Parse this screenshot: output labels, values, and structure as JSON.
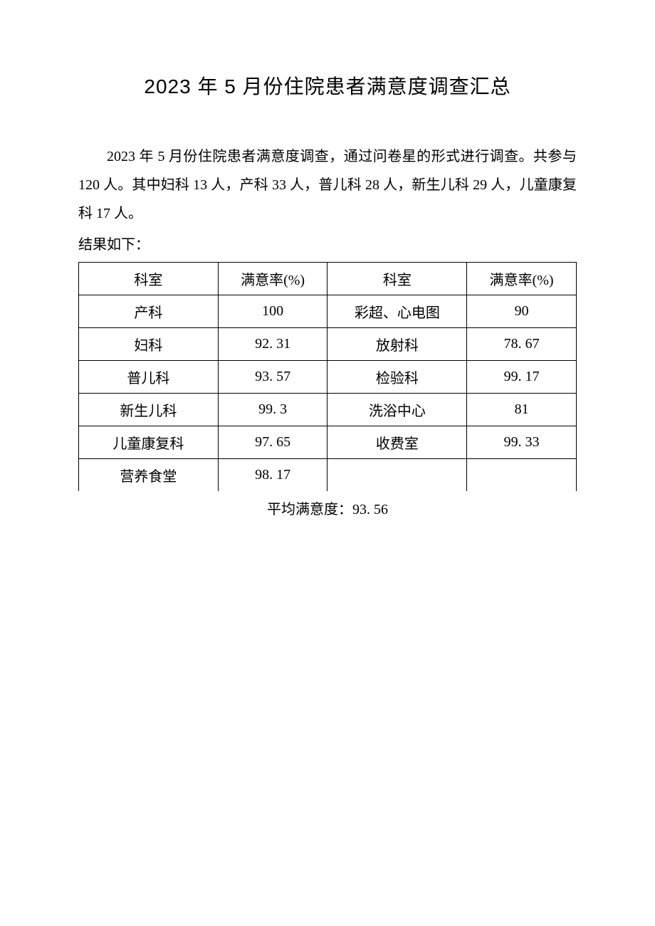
{
  "title": "2023 年 5 月份住院患者满意度调查汇总",
  "intro": "2023 年 5 月份住院患者满意度调查，通过问卷星的形式进行调查。共参与 120 人。其中妇科 13 人，产科 33 人，普儿科 28 人，新生儿科 29 人，儿童康复科 17 人。",
  "results_label": "结果如下：",
  "table": {
    "headers": {
      "dept1": "科室",
      "rate1": "满意率(%)",
      "dept2": "科室",
      "rate2": "满意率(%)"
    },
    "rows": [
      {
        "dept1": "产科",
        "rate1": "100",
        "dept2": "彩超、心电图",
        "rate2": "90"
      },
      {
        "dept1": "妇科",
        "rate1": "92. 31",
        "dept2": "放射科",
        "rate2": "78. 67"
      },
      {
        "dept1": "普儿科",
        "rate1": "93. 57",
        "dept2": "检验科",
        "rate2": "99. 17"
      },
      {
        "dept1": "新生儿科",
        "rate1": "99. 3",
        "dept2": "洗浴中心",
        "rate2": "81"
      },
      {
        "dept1": "儿童康复科",
        "rate1": "97. 65",
        "dept2": "收费室",
        "rate2": "99. 33"
      },
      {
        "dept1": "营养食堂",
        "rate1": "98. 17",
        "dept2": "",
        "rate2": ""
      }
    ]
  },
  "average_label": "平均满意度：93. 56"
}
